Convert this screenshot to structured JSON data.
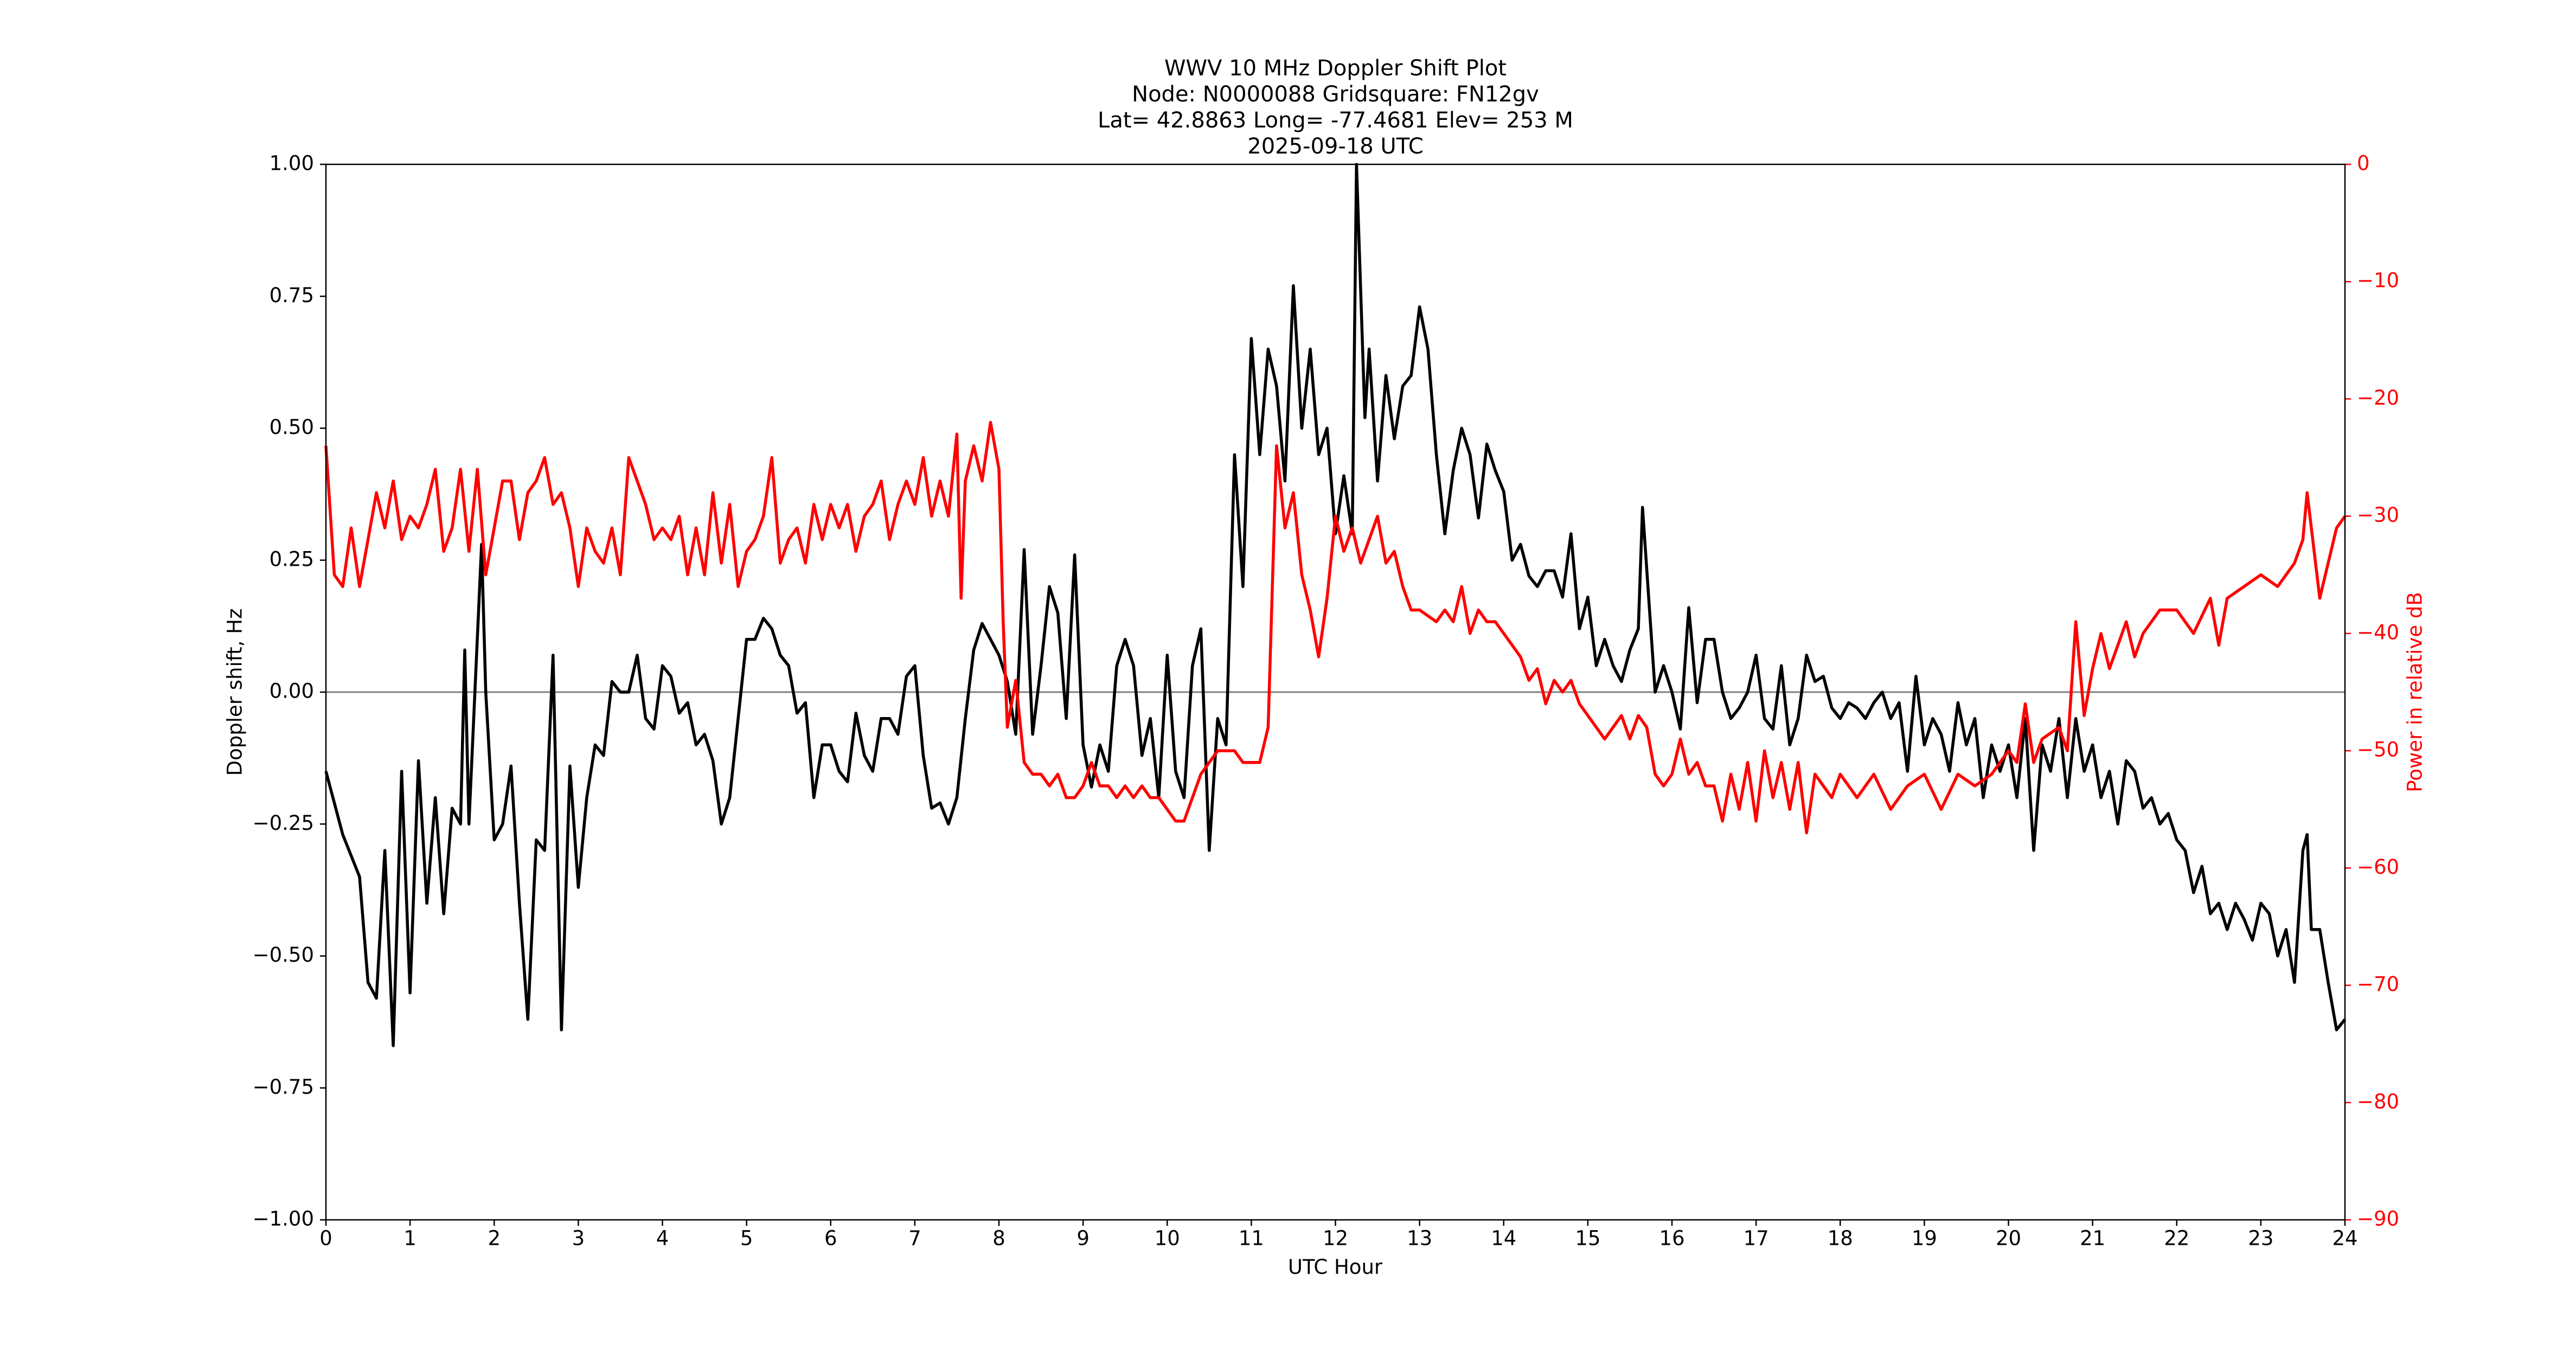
{
  "chart_data": {
    "type": "line",
    "title": [
      "WWV 10 MHz Doppler Shift Plot",
      "Node:  N0000088     Gridsquare:  FN12gv",
      "Lat= 42.8863    Long= -77.4681    Elev= 253 M",
      "2025-09-18  UTC"
    ],
    "xlabel": "UTC Hour",
    "ylabel": "Doppler shift, Hz",
    "y2label": "Power in relative dB",
    "xlim": [
      0,
      24
    ],
    "xticks": [
      0,
      1,
      2,
      3,
      4,
      5,
      6,
      7,
      8,
      9,
      10,
      11,
      12,
      13,
      14,
      15,
      16,
      17,
      18,
      19,
      20,
      21,
      22,
      23,
      24
    ],
    "ylim": [
      -1,
      1
    ],
    "yticks": [
      {
        "value": -1,
        "label": "−1.00"
      },
      {
        "value": -0.75,
        "label": "−0.75"
      },
      {
        "value": -0.5,
        "label": "−0.50"
      },
      {
        "value": -0.25,
        "label": "−0.25"
      },
      {
        "value": 0,
        "label": "0.00"
      },
      {
        "value": 0.25,
        "label": "0.25"
      },
      {
        "value": 0.5,
        "label": "0.50"
      },
      {
        "value": 0.75,
        "label": "0.75"
      },
      {
        "value": 1,
        "label": "1.00"
      }
    ],
    "y2lim": [
      -90,
      0
    ],
    "y2ticks": [
      {
        "value": -90,
        "label": "−90"
      },
      {
        "value": -80,
        "label": "−80"
      },
      {
        "value": -70,
        "label": "−70"
      },
      {
        "value": -60,
        "label": "−60"
      },
      {
        "value": -50,
        "label": "−50"
      },
      {
        "value": -40,
        "label": "−40"
      },
      {
        "value": -30,
        "label": "−30"
      },
      {
        "value": -20,
        "label": "−20"
      },
      {
        "value": -10,
        "label": "−10"
      },
      0
    ],
    "y2color": "#ff0000",
    "reference_line": 0,
    "reference_color": "#808080",
    "series": [
      {
        "color": "#000000",
        "axis": "y",
        "x": [
          0,
          0.2,
          0.4,
          0.5,
          0.6,
          0.7,
          0.8,
          0.9,
          1.0,
          1.1,
          1.2,
          1.3,
          1.4,
          1.5,
          1.6,
          1.65,
          1.7,
          1.85,
          1.9,
          2.0,
          2.1,
          2.2,
          2.3,
          2.4,
          2.5,
          2.6,
          2.7,
          2.8,
          2.9,
          3.0,
          3.1,
          3.2,
          3.3,
          3.4,
          3.5,
          3.6,
          3.7,
          3.8,
          3.9,
          4.0,
          4.1,
          4.2,
          4.3,
          4.4,
          4.5,
          4.6,
          4.7,
          4.8,
          5.0,
          5.1,
          5.2,
          5.3,
          5.4,
          5.5,
          5.6,
          5.7,
          5.8,
          5.9,
          6.0,
          6.1,
          6.2,
          6.3,
          6.4,
          6.5,
          6.6,
          6.7,
          6.8,
          6.9,
          7.0,
          7.1,
          7.2,
          7.3,
          7.4,
          7.5,
          7.6,
          7.7,
          7.8,
          7.9,
          8.0,
          8.1,
          8.2,
          8.3,
          8.4,
          8.5,
          8.6,
          8.7,
          8.8,
          8.9,
          9.0,
          9.1,
          9.2,
          9.3,
          9.4,
          9.5,
          9.6,
          9.7,
          9.8,
          9.9,
          10.0,
          10.1,
          10.2,
          10.3,
          10.4,
          10.5,
          10.6,
          10.7,
          10.8,
          10.9,
          11.0,
          11.1,
          11.2,
          11.3,
          11.4,
          11.5,
          11.6,
          11.7,
          11.8,
          11.9,
          12.0,
          12.1,
          12.2,
          12.25,
          12.35,
          12.4,
          12.5,
          12.6,
          12.7,
          12.8,
          12.9,
          13.0,
          13.1,
          13.2,
          13.3,
          13.4,
          13.5,
          13.6,
          13.7,
          13.8,
          13.9,
          14.0,
          14.1,
          14.2,
          14.3,
          14.4,
          14.5,
          14.6,
          14.7,
          14.8,
          14.9,
          15.0,
          15.1,
          15.2,
          15.3,
          15.4,
          15.5,
          15.6,
          15.65,
          15.8,
          15.9,
          16.0,
          16.1,
          16.2,
          16.3,
          16.4,
          16.5,
          16.6,
          16.7,
          16.8,
          16.9,
          17.0,
          17.1,
          17.2,
          17.3,
          17.4,
          17.5,
          17.6,
          17.7,
          17.8,
          17.9,
          18.0,
          18.1,
          18.2,
          18.3,
          18.4,
          18.5,
          18.6,
          18.7,
          18.8,
          18.9,
          19.0,
          19.1,
          19.2,
          19.3,
          19.4,
          19.5,
          19.6,
          19.7,
          19.8,
          19.9,
          20.0,
          20.1,
          20.2,
          20.3,
          20.4,
          20.5,
          20.6,
          20.7,
          20.8,
          20.9,
          21.0,
          21.1,
          21.2,
          21.3,
          21.4,
          21.5,
          21.6,
          21.7,
          21.8,
          21.9,
          22.0,
          22.1,
          22.2,
          22.3,
          22.4,
          22.5,
          22.6,
          22.7,
          22.8,
          22.9,
          23.0,
          23.1,
          23.2,
          23.3,
          23.4,
          23.5,
          23.55,
          23.6,
          23.7,
          23.8,
          23.9,
          24.0
        ],
        "values": [
          -0.15,
          -0.27,
          -0.35,
          -0.55,
          -0.58,
          -0.3,
          -0.67,
          -0.15,
          -0.57,
          -0.13,
          -0.4,
          -0.2,
          -0.42,
          -0.22,
          -0.25,
          0.08,
          -0.25,
          0.28,
          0.0,
          -0.28,
          -0.25,
          -0.14,
          -0.4,
          -0.62,
          -0.28,
          -0.3,
          0.07,
          -0.64,
          -0.14,
          -0.37,
          -0.2,
          -0.1,
          -0.12,
          0.02,
          0.0,
          0.0,
          0.07,
          -0.05,
          -0.07,
          0.05,
          0.03,
          -0.04,
          -0.02,
          -0.1,
          -0.08,
          -0.13,
          -0.25,
          -0.2,
          0.1,
          0.1,
          0.14,
          0.12,
          0.07,
          0.05,
          -0.04,
          -0.02,
          -0.2,
          -0.1,
          -0.1,
          -0.15,
          -0.17,
          -0.04,
          -0.12,
          -0.15,
          -0.05,
          -0.05,
          -0.08,
          0.03,
          0.05,
          -0.12,
          -0.22,
          -0.21,
          -0.25,
          -0.2,
          -0.05,
          0.08,
          0.13,
          0.1,
          0.07,
          0.02,
          -0.08,
          0.27,
          -0.08,
          0.05,
          0.2,
          0.15,
          -0.05,
          0.26,
          -0.1,
          -0.18,
          -0.1,
          -0.15,
          0.05,
          0.1,
          0.05,
          -0.12,
          -0.05,
          -0.2,
          0.07,
          -0.15,
          -0.2,
          0.05,
          0.12,
          -0.3,
          -0.05,
          -0.1,
          0.45,
          0.2,
          0.67,
          0.45,
          0.65,
          0.58,
          0.4,
          0.77,
          0.5,
          0.65,
          0.45,
          0.5,
          0.3,
          0.41,
          0.3,
          1.0,
          0.52,
          0.65,
          0.4,
          0.6,
          0.48,
          0.58,
          0.6,
          0.73,
          0.65,
          0.45,
          0.3,
          0.42,
          0.5,
          0.45,
          0.33,
          0.47,
          0.42,
          0.38,
          0.25,
          0.28,
          0.22,
          0.2,
          0.23,
          0.23,
          0.18,
          0.3,
          0.12,
          0.18,
          0.05,
          0.1,
          0.05,
          0.02,
          0.08,
          0.12,
          0.35,
          0.0,
          0.05,
          0.0,
          -0.07,
          0.16,
          -0.02,
          0.1,
          0.1,
          0.0,
          -0.05,
          -0.03,
          0.0,
          0.07,
          -0.05,
          -0.07,
          0.05,
          -0.1,
          -0.05,
          0.07,
          0.02,
          0.03,
          -0.03,
          -0.05,
          -0.02,
          -0.03,
          -0.05,
          -0.02,
          0.0,
          -0.05,
          -0.02,
          -0.15,
          0.03,
          -0.1,
          -0.05,
          -0.08,
          -0.15,
          -0.02,
          -0.1,
          -0.05,
          -0.2,
          -0.1,
          -0.15,
          -0.1,
          -0.2,
          -0.05,
          -0.3,
          -0.1,
          -0.15,
          -0.05,
          -0.2,
          -0.05,
          -0.15,
          -0.1,
          -0.2,
          -0.15,
          -0.25,
          -0.13,
          -0.15,
          -0.22,
          -0.2,
          -0.25,
          -0.23,
          -0.28,
          -0.3,
          -0.38,
          -0.33,
          -0.42,
          -0.4,
          -0.45,
          -0.4,
          -0.43,
          -0.47,
          -0.4,
          -0.42,
          -0.5,
          -0.45,
          -0.55,
          -0.3,
          -0.27,
          -0.45,
          -0.45,
          -0.55,
          -0.64,
          -0.62
        ]
      },
      {
        "color": "#ff0000",
        "axis": "y2",
        "x": [
          0,
          0.1,
          0.2,
          0.3,
          0.4,
          0.5,
          0.6,
          0.7,
          0.8,
          0.9,
          1.0,
          1.1,
          1.2,
          1.3,
          1.4,
          1.5,
          1.6,
          1.7,
          1.8,
          1.9,
          2.0,
          2.1,
          2.2,
          2.3,
          2.4,
          2.5,
          2.6,
          2.7,
          2.8,
          2.9,
          3.0,
          3.1,
          3.2,
          3.3,
          3.4,
          3.5,
          3.6,
          3.7,
          3.8,
          3.9,
          4.0,
          4.1,
          4.2,
          4.3,
          4.4,
          4.5,
          4.6,
          4.7,
          4.8,
          4.9,
          5.0,
          5.1,
          5.2,
          5.3,
          5.4,
          5.5,
          5.6,
          5.7,
          5.8,
          5.9,
          6.0,
          6.1,
          6.2,
          6.3,
          6.4,
          6.5,
          6.6,
          6.7,
          6.8,
          6.9,
          7.0,
          7.1,
          7.2,
          7.3,
          7.4,
          7.5,
          7.55,
          7.6,
          7.7,
          7.8,
          7.9,
          8.0,
          8.05,
          8.1,
          8.2,
          8.3,
          8.4,
          8.5,
          8.6,
          8.7,
          8.8,
          8.9,
          9.0,
          9.1,
          9.2,
          9.3,
          9.4,
          9.5,
          9.6,
          9.7,
          9.8,
          9.9,
          10.0,
          10.1,
          10.2,
          10.3,
          10.4,
          10.5,
          10.6,
          10.7,
          10.8,
          10.9,
          11.0,
          11.1,
          11.2,
          11.3,
          11.4,
          11.5,
          11.6,
          11.7,
          11.8,
          11.9,
          12.0,
          12.1,
          12.2,
          12.3,
          12.5,
          12.6,
          12.7,
          12.8,
          12.9,
          13.0,
          13.2,
          13.3,
          13.4,
          13.5,
          13.6,
          13.7,
          13.8,
          13.9,
          14.0,
          14.2,
          14.3,
          14.4,
          14.5,
          14.6,
          14.7,
          14.8,
          14.9,
          15.0,
          15.1,
          15.2,
          15.3,
          15.4,
          15.5,
          15.6,
          15.7,
          15.8,
          15.9,
          16.0,
          16.1,
          16.2,
          16.3,
          16.4,
          16.5,
          16.6,
          16.7,
          16.8,
          16.9,
          17.0,
          17.1,
          17.2,
          17.3,
          17.4,
          17.5,
          17.6,
          17.7,
          17.8,
          17.9,
          18.0,
          18.2,
          18.4,
          18.6,
          18.8,
          19.0,
          19.2,
          19.4,
          19.6,
          19.8,
          20.0,
          20.1,
          20.2,
          20.3,
          20.4,
          20.6,
          20.7,
          20.8,
          20.9,
          21.0,
          21.1,
          21.2,
          21.4,
          21.5,
          21.6,
          21.8,
          22.0,
          22.2,
          22.4,
          22.5,
          22.6,
          22.8,
          23.0,
          23.2,
          23.4,
          23.5,
          23.55,
          23.6,
          23.7,
          23.8,
          23.9,
          24.0
        ],
        "values": [
          -24,
          -35,
          -36,
          -31,
          -36,
          -32,
          -28,
          -31,
          -27,
          -32,
          -30,
          -31,
          -29,
          -26,
          -33,
          -31,
          -26,
          -33,
          -26,
          -35,
          -31,
          -27,
          -27,
          -32,
          -28,
          -27,
          -25,
          -29,
          -28,
          -31,
          -36,
          -31,
          -33,
          -34,
          -31,
          -35,
          -25,
          -27,
          -29,
          -32,
          -31,
          -32,
          -30,
          -35,
          -31,
          -35,
          -28,
          -34,
          -29,
          -36,
          -33,
          -32,
          -30,
          -25,
          -34,
          -32,
          -31,
          -34,
          -29,
          -32,
          -29,
          -31,
          -29,
          -33,
          -30,
          -29,
          -27,
          -32,
          -29,
          -27,
          -29,
          -25,
          -30,
          -27,
          -30,
          -23,
          -37,
          -27,
          -24,
          -27,
          -22,
          -26,
          -39,
          -48,
          -44,
          -51,
          -52,
          -52,
          -53,
          -52,
          -54,
          -54,
          -53,
          -51,
          -53,
          -53,
          -54,
          -53,
          -54,
          -53,
          -54,
          -54,
          -55,
          -56,
          -56,
          -54,
          -52,
          -51,
          -50,
          -50,
          -50,
          -51,
          -51,
          -51,
          -48,
          -24,
          -31,
          -28,
          -35,
          -38,
          -42,
          -37,
          -30,
          -33,
          -31,
          -34,
          -30,
          -34,
          -33,
          -36,
          -38,
          -38,
          -39,
          -38,
          -39,
          -36,
          -40,
          -38,
          -39,
          -39,
          -40,
          -42,
          -44,
          -43,
          -46,
          -44,
          -45,
          -44,
          -46,
          -47,
          -48,
          -49,
          -48,
          -47,
          -49,
          -47,
          -48,
          -52,
          -53,
          -52,
          -49,
          -52,
          -51,
          -53,
          -53,
          -56,
          -52,
          -55,
          -51,
          -56,
          -50,
          -54,
          -51,
          -55,
          -51,
          -57,
          -52,
          -53,
          -54,
          -52,
          -54,
          -52,
          -55,
          -53,
          -52,
          -55,
          -52,
          -53,
          -52,
          -50,
          -51,
          -46,
          -51,
          -49,
          -48,
          -50,
          -39,
          -47,
          -43,
          -40,
          -43,
          -39,
          -42,
          -40,
          -38,
          -38,
          -40,
          -37,
          -41,
          -37,
          -36,
          -35,
          -36,
          -34,
          -32,
          -28,
          -31,
          -37,
          -34,
          -31,
          -30
        ]
      }
    ]
  }
}
